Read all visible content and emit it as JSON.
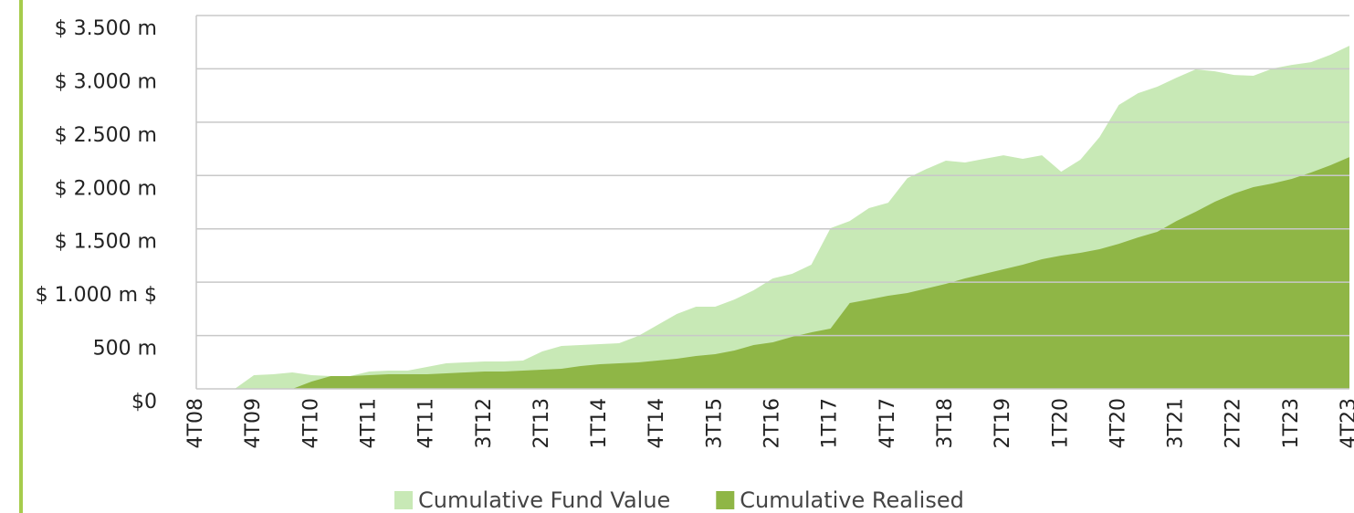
{
  "chart_data": {
    "type": "area",
    "categories": [
      "4T08",
      null,
      null,
      "4T09",
      null,
      null,
      "4T10",
      null,
      null,
      "4T11",
      null,
      null,
      "4T11",
      null,
      null,
      "3T12",
      null,
      null,
      "2T13",
      null,
      null,
      "1T14",
      null,
      null,
      "4T14",
      null,
      null,
      "3T15",
      null,
      null,
      "2T16",
      null,
      null,
      "1T17",
      null,
      null,
      "4T17",
      null,
      null,
      "3T18",
      null,
      null,
      "2T19",
      null,
      null,
      "1T20",
      null,
      null,
      "4T20",
      null,
      null,
      "3T21",
      null,
      null,
      "2T22",
      null,
      null,
      "1T23",
      null,
      null,
      "4T23"
    ],
    "series": [
      {
        "name": "Cumulative Fund Value",
        "color": "#c8e9b6",
        "values": [
          0,
          0,
          0,
          128,
          137,
          154,
          128,
          120,
          120,
          163,
          171,
          171,
          205,
          240,
          248,
          257,
          257,
          265,
          351,
          402,
          411,
          419,
          428,
          496,
          599,
          702,
          770,
          770,
          838,
          924,
          1035,
          1078,
          1164,
          1506,
          1574,
          1694,
          1745,
          1976,
          2062,
          2139,
          2122,
          2156,
          2190,
          2156,
          2190,
          2036,
          2148,
          2361,
          2661,
          2772,
          2832,
          2917,
          2995,
          2977,
          2943,
          2935,
          3003,
          3037,
          3063,
          3131,
          3217
        ]
      },
      {
        "name": "Cumulative Realised",
        "color": "#8fb646",
        "values": [
          0,
          0,
          0,
          0,
          0,
          0,
          68,
          120,
          120,
          128,
          137,
          137,
          137,
          145,
          154,
          163,
          163,
          171,
          180,
          188,
          214,
          231,
          240,
          248,
          265,
          282,
          308,
          325,
          359,
          411,
          436,
          488,
          530,
          565,
          804,
          838,
          873,
          898,
          941,
          984,
          1035,
          1078,
          1121,
          1164,
          1215,
          1249,
          1275,
          1309,
          1360,
          1420,
          1472,
          1574,
          1660,
          1754,
          1831,
          1891,
          1925,
          1968,
          2028,
          2096,
          2173
        ]
      }
    ],
    "ylim": [
      0,
      3500
    ],
    "yticks": [
      {
        "value": 0,
        "label": "$0"
      },
      {
        "value": 500,
        "label": "500 m"
      },
      {
        "value": 1000,
        "label": "$ 1.000 m $"
      },
      {
        "value": 1500,
        "label": "$ 1.500 m"
      },
      {
        "value": 2000,
        "label": "$ 2.000 m"
      },
      {
        "value": 2500,
        "label": "$ 2.500 m"
      },
      {
        "value": 3000,
        "label": "$ 3.000 m"
      },
      {
        "value": 3500,
        "label": "$ 3.500 m"
      }
    ],
    "grid": true,
    "legend": "bottom"
  }
}
